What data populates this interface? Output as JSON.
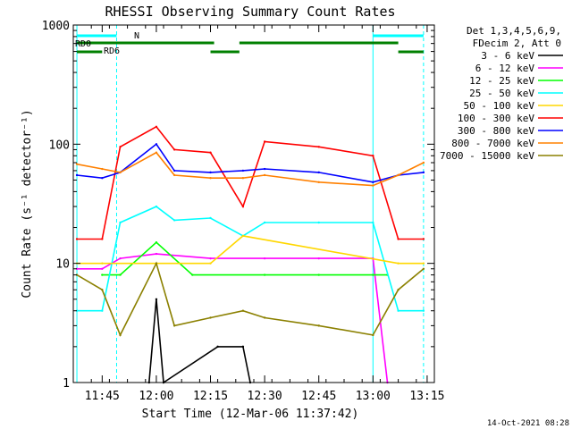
{
  "chart_data": {
    "type": "line",
    "title": "RHESSI Observing Summary Count Rates",
    "xlabel": "Start Time (12-Mar-06 11:37:42)",
    "ylabel": "Count Rate (s⁻¹ detector⁻¹)",
    "x_range_minutes_after_1137": [
      0,
      100
    ],
    "xlim": [
      "11:37",
      "13:17"
    ],
    "ylim": [
      1,
      1000
    ],
    "y_scale": "log",
    "x_ticks": [
      "11:45",
      "12:00",
      "12:15",
      "12:30",
      "12:45",
      "13:00",
      "13:15"
    ],
    "y_ticks": [
      "1",
      "10",
      "100",
      "1000"
    ],
    "legend_position": "right",
    "legend_header": [
      "Det 1,3,4,5,6,9,",
      "FDecim 2, Att 0"
    ],
    "series": [
      {
        "name": "3 - 6 keV",
        "color": "#000000",
        "x": [
          "11:58",
          "12:00",
          "12:02",
          "12:17",
          "12:24",
          "12:26"
        ],
        "values": [
          1,
          5,
          1,
          2,
          2,
          1
        ]
      },
      {
        "name": "6 - 12 keV",
        "color": "#ff00ff",
        "x": [
          "11:38",
          "11:45",
          "11:50",
          "12:00",
          "12:15",
          "12:30",
          "12:45",
          "13:00",
          "13:04"
        ],
        "values": [
          9,
          9,
          11,
          12,
          11,
          11,
          11,
          11,
          1
        ]
      },
      {
        "name": "12 - 25 keV",
        "color": "#00ff00",
        "x": [
          "11:45",
          "11:50",
          "12:00",
          "12:10",
          "12:30",
          "12:45",
          "13:00",
          "13:04"
        ],
        "values": [
          8,
          8,
          15,
          8,
          8,
          8,
          8,
          8
        ]
      },
      {
        "name": "25 - 50 keV",
        "color": "#00ffff",
        "x": [
          "11:38",
          "11:45",
          "11:50",
          "12:00",
          "12:05",
          "12:15",
          "12:24",
          "12:30",
          "12:45",
          "13:00",
          "13:07",
          "13:14"
        ],
        "values": [
          4,
          4,
          22,
          30,
          23,
          24,
          17,
          22,
          22,
          22,
          4,
          4
        ]
      },
      {
        "name": "50 - 100 keV",
        "color": "#ffd700",
        "x": [
          "11:38",
          "11:45",
          "12:15",
          "12:24",
          "13:07",
          "13:14"
        ],
        "values": [
          10,
          10,
          10,
          17,
          10,
          10
        ]
      },
      {
        "name": "100 - 300 keV",
        "color": "#ff0000",
        "x": [
          "11:38",
          "11:45",
          "11:50",
          "12:00",
          "12:05",
          "12:15",
          "12:24",
          "12:30",
          "12:45",
          "13:00",
          "13:07",
          "13:14"
        ],
        "values": [
          16,
          16,
          95,
          140,
          90,
          85,
          30,
          105,
          95,
          80,
          16,
          16
        ]
      },
      {
        "name": "300 - 800 keV",
        "color": "#0000ff",
        "x": [
          "11:38",
          "11:45",
          "11:50",
          "12:00",
          "12:05",
          "12:15",
          "12:24",
          "12:30",
          "12:45",
          "13:00",
          "13:07",
          "13:14"
        ],
        "values": [
          55,
          52,
          58,
          100,
          60,
          58,
          60,
          62,
          58,
          48,
          55,
          58
        ]
      },
      {
        "name": "800 - 7000 keV",
        "color": "#ff8000",
        "x": [
          "11:38",
          "11:45",
          "11:50",
          "12:00",
          "12:05",
          "12:15",
          "12:24",
          "12:30",
          "12:45",
          "13:00",
          "13:07",
          "13:14"
        ],
        "values": [
          68,
          62,
          58,
          85,
          55,
          52,
          52,
          55,
          48,
          45,
          55,
          70
        ]
      },
      {
        "name": "7000 - 15000 keV",
        "color": "#8b8000",
        "x": [
          "11:38",
          "11:45",
          "11:50",
          "12:00",
          "12:05",
          "12:15",
          "12:24",
          "12:30",
          "12:45",
          "13:00",
          "13:07",
          "13:14"
        ],
        "values": [
          8,
          6,
          2.5,
          10,
          3,
          3.5,
          4,
          3.5,
          3,
          2.5,
          6,
          9
        ]
      }
    ],
    "flags": [
      {
        "label": "RD0",
        "color": "#00ffff"
      },
      {
        "label": "N",
        "color": "#00ffff"
      },
      {
        "label": "RD6",
        "color": "#008000"
      }
    ],
    "timestamp": "14-Oct-2021 08:28"
  }
}
